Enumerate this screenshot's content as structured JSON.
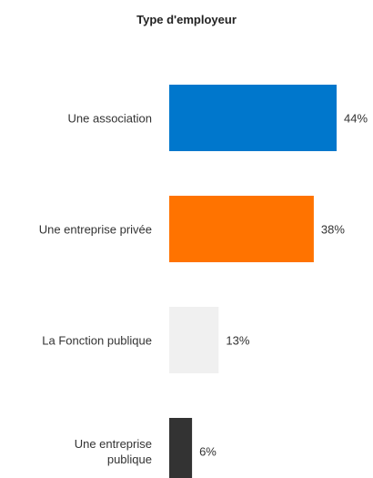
{
  "chart_data": {
    "type": "bar",
    "orientation": "horizontal",
    "title": "Type d'employeur",
    "categories": [
      "Une association",
      "Une entreprise privée",
      "La Fonction publique",
      "Une entreprise publique"
    ],
    "category_lines": [
      [
        "Une association"
      ],
      [
        "Une entreprise privée"
      ],
      [
        "La Fonction publique"
      ],
      [
        "Une entreprise",
        "publique"
      ]
    ],
    "values": [
      44,
      38,
      13,
      6
    ],
    "value_labels": [
      "44%",
      "38%",
      "13%",
      "6%"
    ],
    "colors": [
      "#0077cc",
      "#ff7300",
      "#f0f0f0",
      "#333333"
    ],
    "xlim": [
      0,
      44
    ],
    "grid": false,
    "legend": "none"
  }
}
